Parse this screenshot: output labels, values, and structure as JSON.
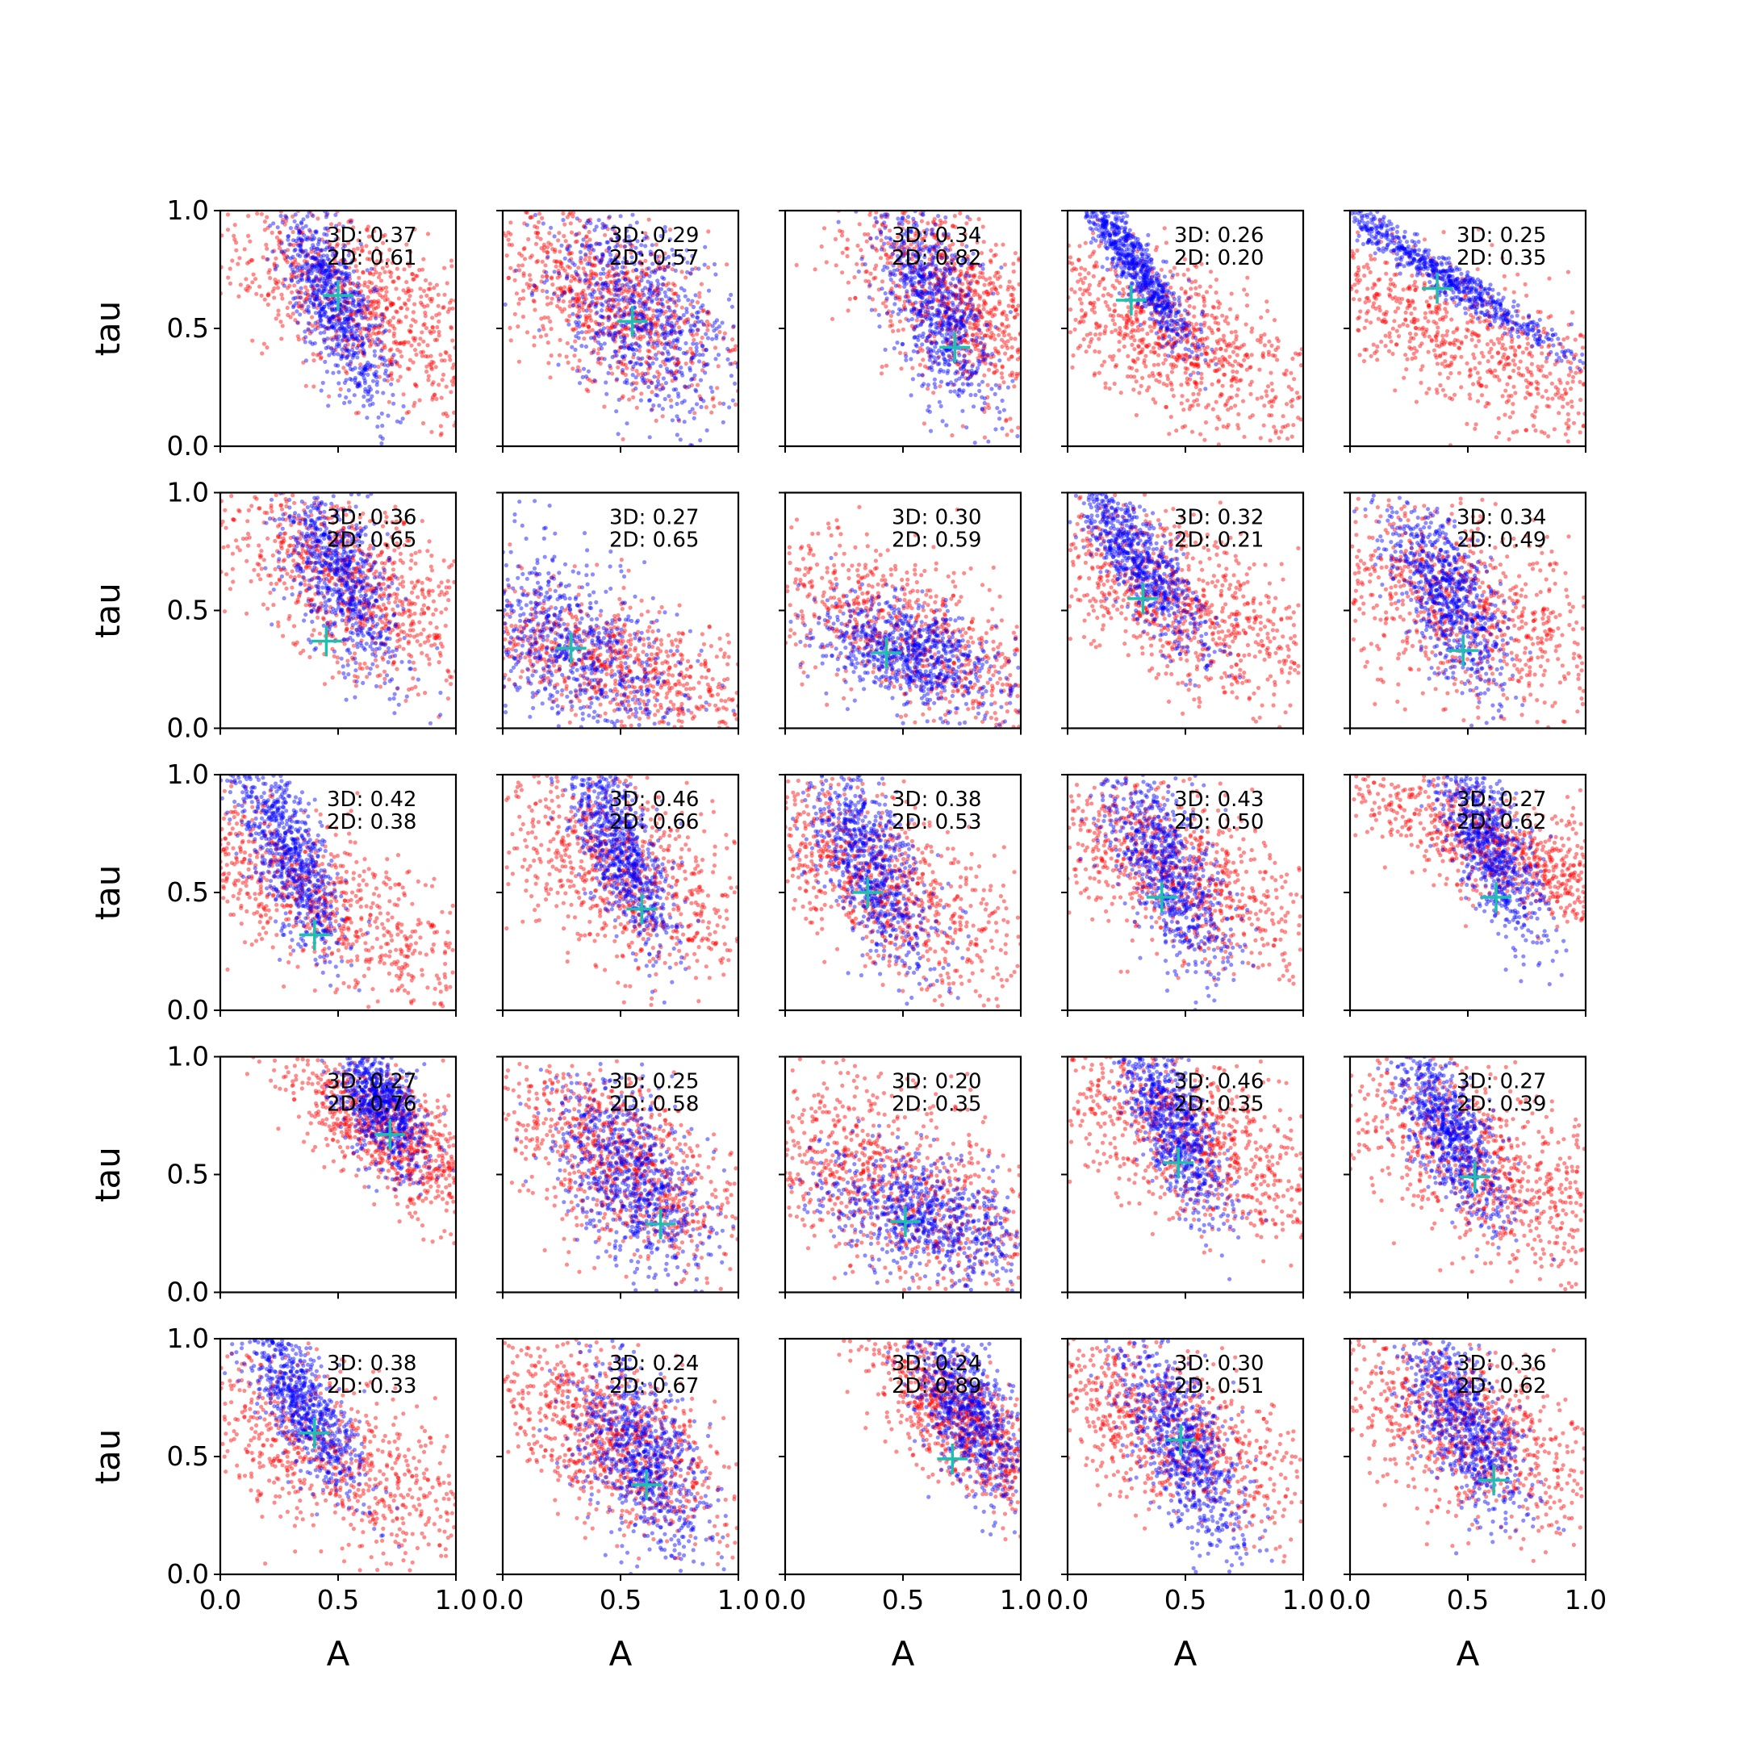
{
  "figure": {
    "rows": 5,
    "cols": 5,
    "xlabel": "A",
    "ylabel": "tau",
    "xlim": [
      0,
      1
    ],
    "ylim": [
      0,
      1
    ],
    "xticks": [
      "0.0",
      "0.5",
      "1.0"
    ],
    "yticks": [
      "0.0",
      "0.5",
      "1.0"
    ],
    "colors": {
      "samples_2d": "#ff0000",
      "samples_3d": "#0000ff",
      "truth_marker": "#1fbfb0"
    }
  },
  "chart_data": [
    {
      "type": "scatter",
      "label_3d": "3D: 0.37",
      "label_2d": "2D: 0.61",
      "truth": [
        0.5,
        0.64
      ],
      "blue": {
        "center": [
          0.48,
          0.62
        ],
        "spread": [
          0.08,
          0.22
        ],
        "slope": -1.6
      },
      "red": {
        "center": [
          0.6,
          0.6
        ],
        "spread": [
          0.25,
          0.22
        ],
        "slope": -0.6
      }
    },
    {
      "type": "scatter",
      "label_3d": "3D: 0.29",
      "label_2d": "2D: 0.57",
      "truth": [
        0.55,
        0.53
      ],
      "blue": {
        "center": [
          0.58,
          0.55
        ],
        "spread": [
          0.16,
          0.25
        ],
        "slope": -1.5
      },
      "red": {
        "center": [
          0.45,
          0.62
        ],
        "spread": [
          0.22,
          0.22
        ],
        "slope": -0.8
      }
    },
    {
      "type": "scatter",
      "label_3d": "3D: 0.34",
      "label_2d": "2D: 0.82",
      "truth": [
        0.72,
        0.42
      ],
      "blue": {
        "center": [
          0.64,
          0.6
        ],
        "spread": [
          0.1,
          0.22
        ],
        "slope": -1.8
      },
      "red": {
        "center": [
          0.72,
          0.62
        ],
        "spread": [
          0.18,
          0.22
        ],
        "slope": -1.0
      }
    },
    {
      "type": "scatter",
      "label_3d": "3D: 0.26",
      "label_2d": "2D: 0.20",
      "truth": [
        0.27,
        0.62
      ],
      "blue": {
        "center": [
          0.28,
          0.78
        ],
        "spread": [
          0.05,
          0.18
        ],
        "slope": -1.0
      },
      "red": {
        "center": [
          0.45,
          0.45
        ],
        "spread": [
          0.25,
          0.22
        ],
        "slope": -0.6
      }
    },
    {
      "type": "scatter",
      "label_3d": "3D: 0.25",
      "label_2d": "2D: 0.35",
      "truth": [
        0.37,
        0.67
      ],
      "blue": {
        "center": [
          0.36,
          0.75
        ],
        "spread": [
          0.06,
          0.2
        ],
        "slope": -0.4
      },
      "red": {
        "center": [
          0.4,
          0.5
        ],
        "spread": [
          0.28,
          0.26
        ],
        "slope": -0.4
      }
    },
    {
      "type": "scatter",
      "label_3d": "3D: 0.36",
      "label_2d": "2D: 0.65",
      "truth": [
        0.45,
        0.37
      ],
      "blue": {
        "center": [
          0.5,
          0.68
        ],
        "spread": [
          0.1,
          0.22
        ],
        "slope": -1.6
      },
      "red": {
        "center": [
          0.55,
          0.62
        ],
        "spread": [
          0.22,
          0.22
        ],
        "slope": -0.8
      }
    },
    {
      "type": "scatter",
      "label_3d": "3D: 0.27",
      "label_2d": "2D: 0.65",
      "truth": [
        0.29,
        0.34
      ],
      "blue": {
        "center": [
          0.28,
          0.35
        ],
        "spread": [
          0.2,
          0.22
        ],
        "slope": -1.0
      },
      "red": {
        "center": [
          0.45,
          0.28
        ],
        "spread": [
          0.3,
          0.18
        ],
        "slope": -0.4
      }
    },
    {
      "type": "scatter",
      "label_3d": "3D: 0.30",
      "label_2d": "2D: 0.59",
      "truth": [
        0.43,
        0.32
      ],
      "blue": {
        "center": [
          0.52,
          0.32
        ],
        "spread": [
          0.18,
          0.12
        ],
        "slope": -0.9
      },
      "red": {
        "center": [
          0.5,
          0.4
        ],
        "spread": [
          0.28,
          0.25
        ],
        "slope": -0.5
      }
    },
    {
      "type": "scatter",
      "label_3d": "3D: 0.32",
      "label_2d": "2D: 0.21",
      "truth": [
        0.32,
        0.55
      ],
      "blue": {
        "center": [
          0.3,
          0.72
        ],
        "spread": [
          0.08,
          0.2
        ],
        "slope": -1.0
      },
      "red": {
        "center": [
          0.45,
          0.55
        ],
        "spread": [
          0.25,
          0.22
        ],
        "slope": -0.7
      }
    },
    {
      "type": "scatter",
      "label_3d": "3D: 0.34",
      "label_2d": "2D: 0.49",
      "truth": [
        0.48,
        0.33
      ],
      "blue": {
        "center": [
          0.42,
          0.55
        ],
        "spread": [
          0.1,
          0.2
        ],
        "slope": -1.5
      },
      "red": {
        "center": [
          0.45,
          0.55
        ],
        "spread": [
          0.28,
          0.25
        ],
        "slope": -0.8
      }
    },
    {
      "type": "scatter",
      "label_3d": "3D: 0.42",
      "label_2d": "2D: 0.38",
      "truth": [
        0.4,
        0.32
      ],
      "blue": {
        "center": [
          0.28,
          0.68
        ],
        "spread": [
          0.08,
          0.22
        ],
        "slope": -1.6
      },
      "red": {
        "center": [
          0.4,
          0.48
        ],
        "spread": [
          0.25,
          0.25
        ],
        "slope": -0.5
      }
    },
    {
      "type": "scatter",
      "label_3d": "3D: 0.46",
      "label_2d": "2D: 0.66",
      "truth": [
        0.59,
        0.43
      ],
      "blue": {
        "center": [
          0.5,
          0.68
        ],
        "spread": [
          0.08,
          0.2
        ],
        "slope": -1.6
      },
      "red": {
        "center": [
          0.5,
          0.58
        ],
        "spread": [
          0.25,
          0.25
        ],
        "slope": -0.8
      }
    },
    {
      "type": "scatter",
      "label_3d": "3D: 0.38",
      "label_2d": "2D: 0.53",
      "truth": [
        0.35,
        0.5
      ],
      "blue": {
        "center": [
          0.36,
          0.62
        ],
        "spread": [
          0.1,
          0.22
        ],
        "slope": -1.6
      },
      "red": {
        "center": [
          0.4,
          0.55
        ],
        "spread": [
          0.22,
          0.25
        ],
        "slope": -0.7
      }
    },
    {
      "type": "scatter",
      "label_3d": "3D: 0.43",
      "label_2d": "2D: 0.50",
      "truth": [
        0.4,
        0.48
      ],
      "blue": {
        "center": [
          0.42,
          0.6
        ],
        "spread": [
          0.1,
          0.22
        ],
        "slope": -1.5
      },
      "red": {
        "center": [
          0.45,
          0.6
        ],
        "spread": [
          0.25,
          0.22
        ],
        "slope": -0.6
      }
    },
    {
      "type": "scatter",
      "label_3d": "3D: 0.27",
      "label_2d": "2D: 0.62",
      "truth": [
        0.62,
        0.48
      ],
      "blue": {
        "center": [
          0.58,
          0.7
        ],
        "spread": [
          0.08,
          0.2
        ],
        "slope": -1.5
      },
      "red": {
        "center": [
          0.65,
          0.68
        ],
        "spread": [
          0.22,
          0.18
        ],
        "slope": -0.4
      }
    },
    {
      "type": "scatter",
      "label_3d": "3D: 0.27",
      "label_2d": "2D: 0.76",
      "truth": [
        0.72,
        0.67
      ],
      "blue": {
        "center": [
          0.68,
          0.8
        ],
        "spread": [
          0.08,
          0.14
        ],
        "slope": -1.5
      },
      "red": {
        "center": [
          0.72,
          0.68
        ],
        "spread": [
          0.16,
          0.18
        ],
        "slope": -0.7
      }
    },
    {
      "type": "scatter",
      "label_3d": "3D: 0.25",
      "label_2d": "2D: 0.58",
      "truth": [
        0.67,
        0.29
      ],
      "blue": {
        "center": [
          0.55,
          0.5
        ],
        "spread": [
          0.14,
          0.22
        ],
        "slope": -1.5
      },
      "red": {
        "center": [
          0.5,
          0.55
        ],
        "spread": [
          0.22,
          0.22
        ],
        "slope": -0.9
      }
    },
    {
      "type": "scatter",
      "label_3d": "3D: 0.20",
      "label_2d": "2D: 0.35",
      "truth": [
        0.51,
        0.3
      ],
      "blue": {
        "center": [
          0.6,
          0.32
        ],
        "spread": [
          0.2,
          0.14
        ],
        "slope": -0.8
      },
      "red": {
        "center": [
          0.45,
          0.45
        ],
        "spread": [
          0.28,
          0.25
        ],
        "slope": -0.7
      }
    },
    {
      "type": "scatter",
      "label_3d": "3D: 0.46",
      "label_2d": "2D: 0.35",
      "truth": [
        0.47,
        0.55
      ],
      "blue": {
        "center": [
          0.45,
          0.72
        ],
        "spread": [
          0.08,
          0.2
        ],
        "slope": -1.4
      },
      "red": {
        "center": [
          0.55,
          0.65
        ],
        "spread": [
          0.25,
          0.22
        ],
        "slope": -0.6
      }
    },
    {
      "type": "scatter",
      "label_3d": "3D: 0.27",
      "label_2d": "2D: 0.39",
      "truth": [
        0.53,
        0.49
      ],
      "blue": {
        "center": [
          0.42,
          0.68
        ],
        "spread": [
          0.08,
          0.2
        ],
        "slope": -1.5
      },
      "red": {
        "center": [
          0.55,
          0.55
        ],
        "spread": [
          0.25,
          0.25
        ],
        "slope": -0.7
      }
    },
    {
      "type": "scatter",
      "label_3d": "3D: 0.38",
      "label_2d": "2D: 0.33",
      "truth": [
        0.4,
        0.6
      ],
      "blue": {
        "center": [
          0.35,
          0.72
        ],
        "spread": [
          0.08,
          0.2
        ],
        "slope": -1.2
      },
      "red": {
        "center": [
          0.45,
          0.5
        ],
        "spread": [
          0.28,
          0.25
        ],
        "slope": -0.5
      }
    },
    {
      "type": "scatter",
      "label_3d": "3D: 0.24",
      "label_2d": "2D: 0.67",
      "truth": [
        0.61,
        0.38
      ],
      "blue": {
        "center": [
          0.58,
          0.5
        ],
        "spread": [
          0.12,
          0.22
        ],
        "slope": -1.6
      },
      "red": {
        "center": [
          0.45,
          0.58
        ],
        "spread": [
          0.22,
          0.22
        ],
        "slope": -0.9
      }
    },
    {
      "type": "scatter",
      "label_3d": "3D: 0.24",
      "label_2d": "2D: 0.89",
      "truth": [
        0.71,
        0.49
      ],
      "blue": {
        "center": [
          0.78,
          0.68
        ],
        "spread": [
          0.1,
          0.18
        ],
        "slope": -1.5
      },
      "red": {
        "center": [
          0.75,
          0.65
        ],
        "spread": [
          0.14,
          0.2
        ],
        "slope": -0.8
      }
    },
    {
      "type": "scatter",
      "label_3d": "3D: 0.30",
      "label_2d": "2D: 0.51",
      "truth": [
        0.48,
        0.57
      ],
      "blue": {
        "center": [
          0.48,
          0.55
        ],
        "spread": [
          0.1,
          0.22
        ],
        "slope": -1.5
      },
      "red": {
        "center": [
          0.4,
          0.62
        ],
        "spread": [
          0.25,
          0.22
        ],
        "slope": -0.6
      }
    },
    {
      "type": "scatter",
      "label_3d": "3D: 0.36",
      "label_2d": "2D: 0.62",
      "truth": [
        0.61,
        0.4
      ],
      "blue": {
        "center": [
          0.48,
          0.65
        ],
        "spread": [
          0.1,
          0.2
        ],
        "slope": -1.6
      },
      "red": {
        "center": [
          0.5,
          0.6
        ],
        "spread": [
          0.25,
          0.22
        ],
        "slope": -0.7
      }
    }
  ]
}
